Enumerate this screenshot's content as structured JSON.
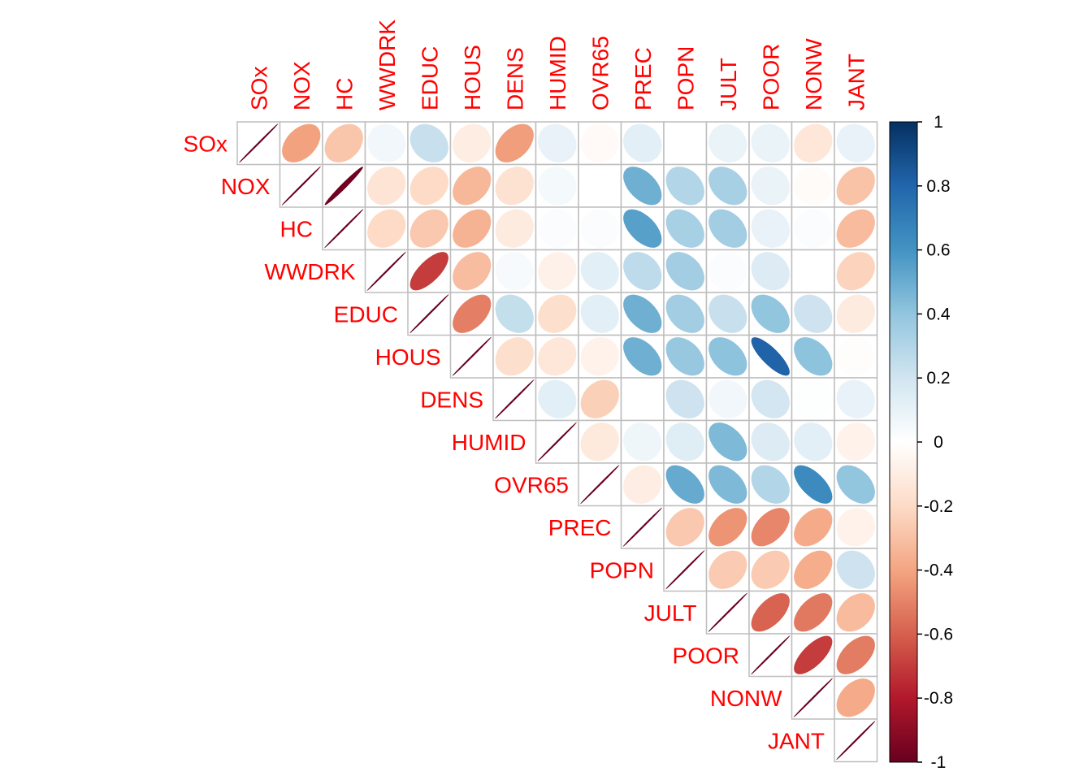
{
  "chart_data": {
    "type": "heatmap",
    "subtype": "correlation-ellipse-upper",
    "variables": [
      "SOx",
      "NOX",
      "HC",
      "WWDRK",
      "EDUC",
      "HOUS",
      "DENS",
      "HUMID",
      "OVR65",
      "PREC",
      "POPN",
      "JULT",
      "POOR",
      "NONW",
      "JANT"
    ],
    "matrix": [
      [
        1.0,
        0.41,
        0.28,
        -0.06,
        -0.23,
        0.1,
        0.42,
        -0.1,
        0.03,
        -0.12,
        0.0,
        -0.09,
        -0.09,
        0.14,
        -0.1
      ],
      [
        0.41,
        1.0,
        0.98,
        0.15,
        0.2,
        0.33,
        0.16,
        -0.05,
        0.0,
        -0.49,
        -0.3,
        -0.33,
        -0.09,
        0.02,
        0.29
      ],
      [
        0.28,
        0.98,
        1.0,
        0.2,
        0.27,
        0.35,
        0.11,
        -0.02,
        -0.02,
        -0.55,
        -0.33,
        -0.35,
        -0.1,
        -0.02,
        0.32
      ],
      [
        -0.06,
        0.15,
        0.2,
        1.0,
        0.7,
        0.31,
        -0.04,
        0.08,
        -0.12,
        -0.26,
        -0.35,
        -0.02,
        -0.15,
        0.0,
        0.23
      ],
      [
        -0.23,
        0.2,
        0.27,
        0.7,
        1.0,
        0.51,
        -0.24,
        0.18,
        -0.12,
        -0.49,
        -0.35,
        -0.23,
        -0.4,
        -0.21,
        0.11
      ],
      [
        0.1,
        0.33,
        0.35,
        0.31,
        0.51,
        1.0,
        0.18,
        0.14,
        0.07,
        -0.49,
        -0.38,
        -0.41,
        -0.81,
        -0.41,
        0.01
      ],
      [
        0.42,
        0.16,
        0.11,
        -0.04,
        -0.24,
        0.18,
        1.0,
        -0.12,
        0.24,
        0.0,
        -0.21,
        -0.06,
        -0.19,
        -0.01,
        -0.1
      ],
      [
        -0.1,
        -0.05,
        -0.02,
        0.08,
        0.18,
        0.14,
        -0.12,
        1.0,
        0.12,
        -0.07,
        -0.14,
        -0.45,
        -0.15,
        -0.12,
        0.07
      ],
      [
        0.03,
        0.0,
        -0.02,
        -0.12,
        -0.12,
        0.07,
        0.24,
        0.12,
        1.0,
        0.1,
        -0.51,
        -0.45,
        -0.3,
        -0.64,
        -0.4
      ],
      [
        -0.12,
        -0.49,
        -0.55,
        -0.26,
        -0.49,
        -0.49,
        0.0,
        -0.07,
        0.1,
        1.0,
        0.27,
        0.45,
        0.49,
        0.38,
        0.07
      ],
      [
        0.0,
        -0.3,
        -0.33,
        -0.35,
        -0.35,
        -0.38,
        -0.21,
        -0.14,
        -0.51,
        0.27,
        1.0,
        0.26,
        0.26,
        0.37,
        -0.21
      ],
      [
        -0.09,
        -0.33,
        -0.35,
        -0.02,
        -0.23,
        -0.41,
        -0.06,
        -0.45,
        -0.45,
        0.45,
        0.26,
        1.0,
        0.59,
        0.53,
        0.32
      ],
      [
        -0.09,
        -0.09,
        -0.1,
        -0.15,
        -0.4,
        -0.81,
        -0.19,
        -0.15,
        -0.3,
        0.49,
        0.26,
        0.59,
        1.0,
        0.7,
        0.52
      ],
      [
        0.14,
        0.02,
        -0.02,
        0.0,
        -0.21,
        -0.41,
        -0.01,
        -0.12,
        -0.64,
        0.38,
        0.37,
        0.53,
        0.7,
        1.0,
        0.38
      ],
      [
        -0.1,
        0.29,
        0.32,
        0.23,
        0.11,
        0.01,
        -0.1,
        0.07,
        -0.4,
        0.07,
        -0.21,
        0.32,
        0.52,
        0.38,
        1.0
      ]
    ],
    "legend": {
      "ticks": [
        "1",
        "0.8",
        "0.6",
        "0.4",
        "0.2",
        "0",
        "-0.2",
        "-0.4",
        "-0.6",
        "-0.8",
        "-1"
      ],
      "range": [
        -1,
        1
      ],
      "colors": [
        "#67001F",
        "#B2182B",
        "#D6604D",
        "#F4A582",
        "#FDDBC7",
        "#FFFFFF",
        "#D1E5F0",
        "#92C5DE",
        "#4393C3",
        "#2166AC",
        "#053061"
      ]
    },
    "label_color": "#FF0000",
    "grid_color": "#BEBEBE"
  }
}
